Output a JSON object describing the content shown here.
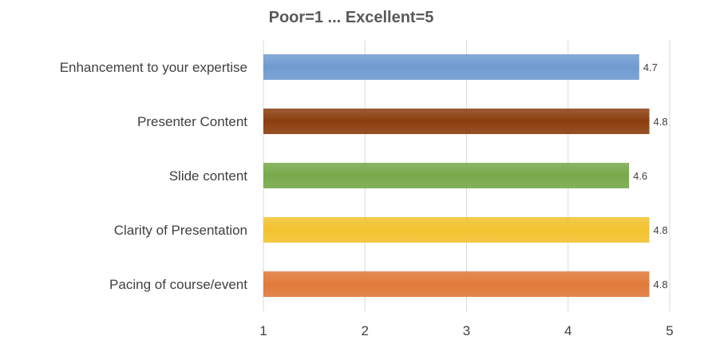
{
  "chart_data": {
    "type": "bar",
    "orientation": "horizontal",
    "title": "Poor=1 ... Excellent=5",
    "xlabel": "",
    "ylabel": "",
    "categories": [
      "Enhancement to your expertise",
      "Presenter Content",
      "Slide content",
      "Clarity of Presentation",
      "Pacing of course/event"
    ],
    "values": [
      4.7,
      4.8,
      4.6,
      4.8,
      4.8
    ],
    "value_labels": [
      "4.7",
      "4.8",
      "4.6",
      "4.8",
      "4.8"
    ],
    "colors": [
      "#6f9bd1",
      "#8b3e0f",
      "#77a94a",
      "#f2c230",
      "#e07a3a"
    ],
    "xlim": [
      1,
      5
    ],
    "ticks": [
      "1",
      "2",
      "3",
      "4",
      "5"
    ],
    "grid": "vertical",
    "legend": "none"
  }
}
